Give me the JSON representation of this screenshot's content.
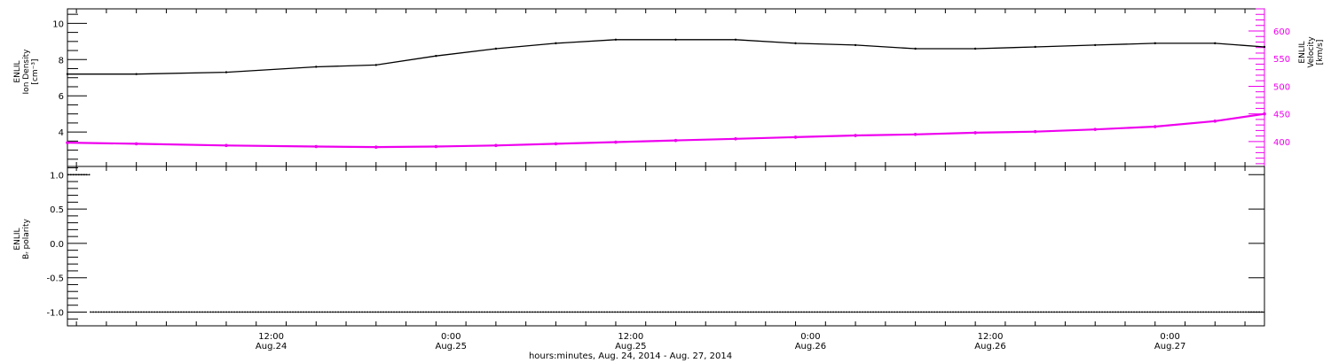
{
  "chart_data": [
    {
      "type": "line",
      "panel": "top",
      "title": "",
      "xlabel": "hours:minutes, Aug. 24, 2014 - Aug. 27, 2014",
      "x_tick_labels": [
        {
          "time": "12:00",
          "date": "Aug.24"
        },
        {
          "time": "0:00",
          "date": "Aug.25"
        },
        {
          "time": "12:00",
          "date": "Aug.25"
        },
        {
          "time": "0:00",
          "date": "Aug.26"
        },
        {
          "time": "12:00",
          "date": "Aug.26"
        },
        {
          "time": "0:00",
          "date": "Aug.27"
        }
      ],
      "x_tick_hours": [
        12,
        24,
        36,
        48,
        60,
        72
      ],
      "xlim_hours": [
        -1.6,
        78.3
      ],
      "left_axis": {
        "label_lines": [
          "ENLIL",
          "Ion Density",
          "[cm⁻³]"
        ],
        "ylim": [
          2.1,
          10.8
        ],
        "ticks": [
          4,
          6,
          8,
          10
        ]
      },
      "right_axis": {
        "label_lines": [
          "ENLIL",
          "Velocity",
          "[km/s]"
        ],
        "ylim": [
          355,
          640
        ],
        "ticks": [
          400,
          450,
          500,
          550,
          600
        ]
      },
      "series": [
        {
          "name": "Ion Density",
          "axis": "left",
          "color": "#000000",
          "x_hours": [
            -1.6,
            3,
            9,
            15,
            19,
            23,
            27,
            31,
            35,
            39,
            43,
            47,
            51,
            55,
            59,
            63,
            67,
            71,
            75,
            78.3
          ],
          "values": [
            7.2,
            7.2,
            7.3,
            7.6,
            7.7,
            8.2,
            8.6,
            8.9,
            9.1,
            9.1,
            9.1,
            8.9,
            8.8,
            8.6,
            8.6,
            8.7,
            8.8,
            8.9,
            8.9,
            8.7
          ]
        },
        {
          "name": "Velocity",
          "axis": "right",
          "color": "#ee00ee",
          "x_hours": [
            -1.6,
            3,
            9,
            15,
            19,
            23,
            27,
            31,
            35,
            39,
            43,
            47,
            51,
            55,
            59,
            63,
            67,
            71,
            75,
            78.3
          ],
          "values": [
            398,
            396,
            393,
            391,
            390,
            391,
            393,
            396,
            399,
            402,
            405,
            408,
            411,
            413,
            416,
            418,
            422,
            427,
            437,
            450
          ]
        }
      ]
    },
    {
      "type": "scatter",
      "panel": "bottom",
      "title": "",
      "xlabel": "hours:minutes, Aug. 24, 2014 - Aug. 27, 2014",
      "left_axis": {
        "label_lines": [
          "ENLIL",
          "Bᵣ polarity"
        ],
        "ylim": [
          -1.2,
          1.12
        ],
        "ticks": [
          -1.0,
          -0.5,
          0.0,
          0.5,
          1.0
        ]
      },
      "series": [
        {
          "name": "Br polarity",
          "color": "#000000",
          "segments": [
            {
              "x_start_hours": -1.6,
              "x_end_hours": -0.1,
              "value": 1.0
            },
            {
              "x_start_hours": -0.1,
              "x_end_hours": 78.3,
              "value": -1.0
            }
          ]
        }
      ]
    }
  ]
}
